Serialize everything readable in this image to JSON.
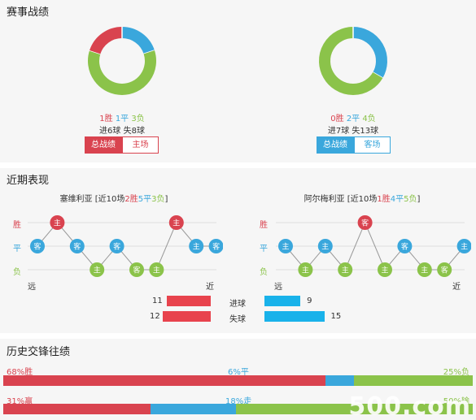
{
  "match_record": {
    "title": "赛事战绩",
    "left": {
      "win": "1胜",
      "draw": "1平",
      "loss": "3负",
      "goals": "进6球 失8球",
      "donut": {
        "win": 1,
        "draw": 1,
        "loss": 3
      },
      "btn_total": "总战绩",
      "btn_venue": "主场"
    },
    "right": {
      "win": "0胜",
      "draw": "2平",
      "loss": "4负",
      "goals": "进7球 失13球",
      "donut": {
        "win": 0,
        "draw": 2,
        "loss": 4
      },
      "btn_total": "总战绩",
      "btn_venue": "客场"
    }
  },
  "recent": {
    "title": "近期表现",
    "left_team": {
      "name": "塞维利亚",
      "summary_open": "[近10场",
      "w": "2胜",
      "d": "5平",
      "l": "3负",
      "summary_close": "]",
      "results": [
        "D",
        "W",
        "D",
        "L",
        "D",
        "L",
        "L",
        "W",
        "D",
        "D"
      ],
      "venues": [
        "客",
        "主",
        "客",
        "主",
        "客",
        "客",
        "主",
        "主",
        "主",
        "客"
      ]
    },
    "right_team": {
      "name": "阿尔梅利亚",
      "summary_open": "[近10场",
      "w": "1胜",
      "d": "4平",
      "l": "5负",
      "summary_close": "]",
      "results": [
        "D",
        "L",
        "D",
        "L",
        "W",
        "L",
        "D",
        "L",
        "L",
        "D"
      ],
      "venues": [
        "主",
        "主",
        "主",
        "主",
        "客",
        "主",
        "客",
        "主",
        "客",
        "主"
      ]
    },
    "y_labels": {
      "win": "胜",
      "draw": "平",
      "loss": "负"
    },
    "far": "远",
    "near": "近",
    "goals_for": {
      "label": "进球",
      "left": 11,
      "right": 9
    },
    "goals_against": {
      "label": "失球",
      "left": 12,
      "right": 15
    }
  },
  "history": {
    "title": "历史交锋往绩",
    "row1": {
      "win": "68%胜",
      "draw": "6%平",
      "loss": "25%负",
      "win_pct": 68,
      "draw_pct": 6,
      "loss_pct": 25
    },
    "row2": {
      "win": "31%赢",
      "draw": "18%走",
      "loss": "50%输",
      "win_pct": 31,
      "draw_pct": 18,
      "loss_pct": 50
    }
  },
  "watermark": "500.com",
  "colors": {
    "win": "#d9434f",
    "draw": "#3aa7dc",
    "loss": "#8bc34a",
    "grid": "#cccccc",
    "bar_red": "#e8434d",
    "bar_blue": "#19b2ea"
  }
}
